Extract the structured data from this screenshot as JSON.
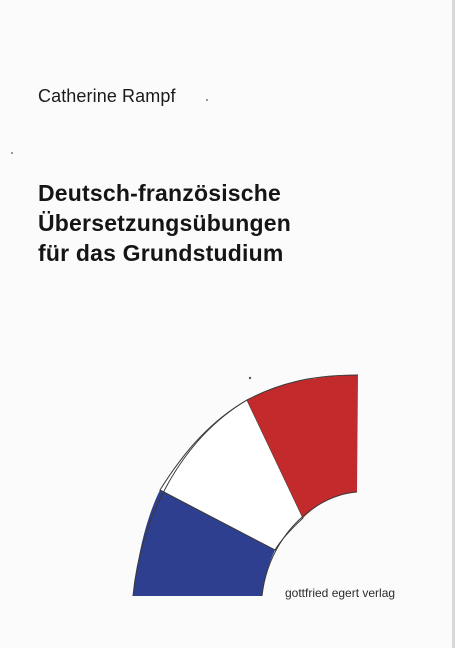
{
  "cover": {
    "author": "Catherine Rampf",
    "title_lines": [
      "Deutsch-französische",
      "Übersetzungsübungen",
      "für das Grundstudium"
    ],
    "publisher": "gottfried egert verlag"
  },
  "flag_colors": {
    "blue": "#2f3f8f",
    "white": "#ffffff",
    "red": "#c32a2c",
    "outline": "#3a3a3a"
  }
}
